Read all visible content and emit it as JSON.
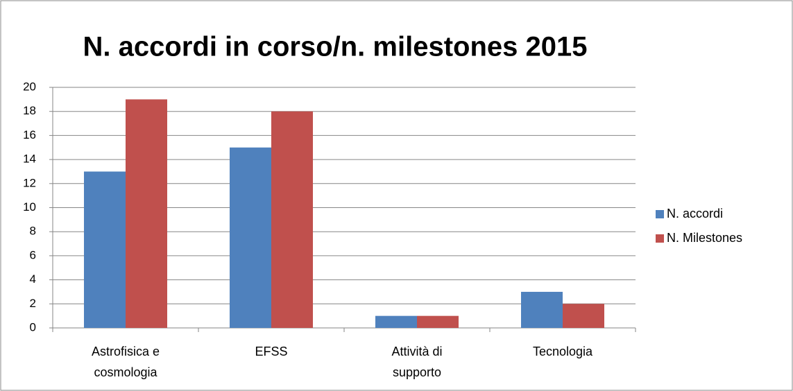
{
  "chart_data": {
    "type": "bar",
    "title": "N. accordi in corso/n. milestones 2015",
    "categories": [
      "Astrofisica e cosmologia",
      "EFSS",
      "Attività di supporto",
      "Tecnologia"
    ],
    "series": [
      {
        "name": "N. accordi",
        "color": "#4f81bd",
        "values": [
          13,
          15,
          1,
          3
        ]
      },
      {
        "name": "N. Milestones",
        "color": "#c0504d",
        "values": [
          19,
          18,
          1,
          2
        ]
      }
    ],
    "ylim": [
      0,
      20
    ],
    "yticks": [
      0,
      2,
      4,
      6,
      8,
      10,
      12,
      14,
      16,
      18,
      20
    ],
    "grid": true,
    "legend": "right"
  }
}
